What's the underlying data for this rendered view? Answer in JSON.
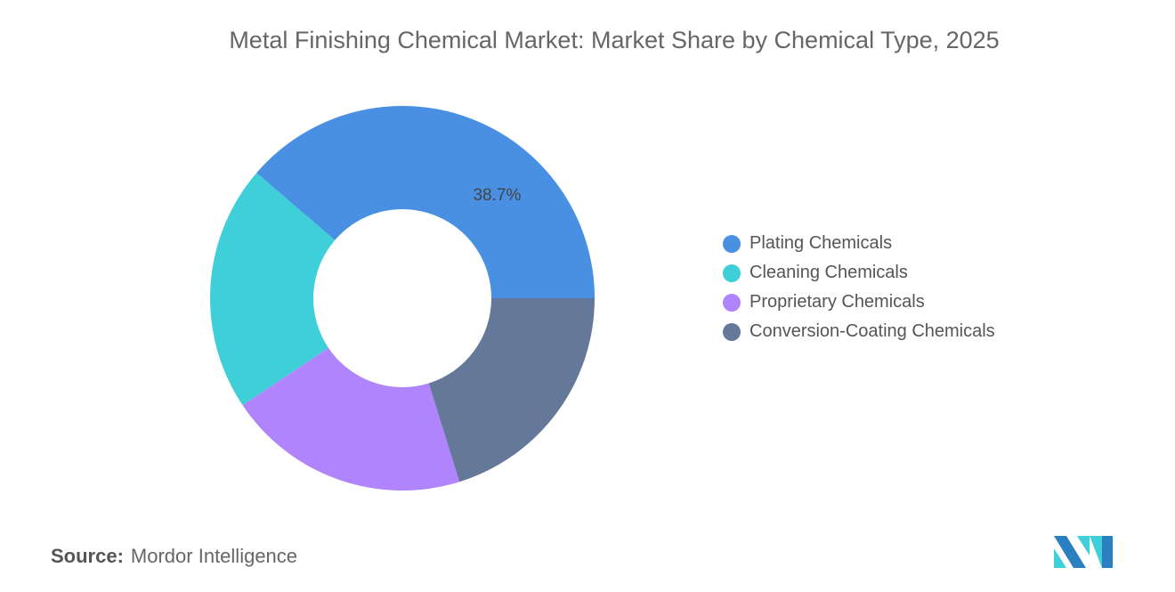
{
  "chart_data": {
    "type": "pie",
    "style": "donut",
    "title": "Metal Finishing Chemical Market: Market Share by Chemical Type, 2025",
    "categories": [
      "Plating Chemicals",
      "Cleaning Chemicals",
      "Proprietary Chemicals",
      "Conversion-Coating Chemicals"
    ],
    "values": [
      38.7,
      20.7,
      20.4,
      20.2
    ],
    "colors": [
      "#4a90e2",
      "#3ecfd8",
      "#b084fc",
      "#647899"
    ],
    "data_labels": [
      "38.7%",
      "",
      "",
      ""
    ],
    "legend_position": "right"
  },
  "source": {
    "label": "Source:",
    "value": "Mordor Intelligence"
  },
  "logo": {
    "text": "Mordor Intelligence"
  }
}
